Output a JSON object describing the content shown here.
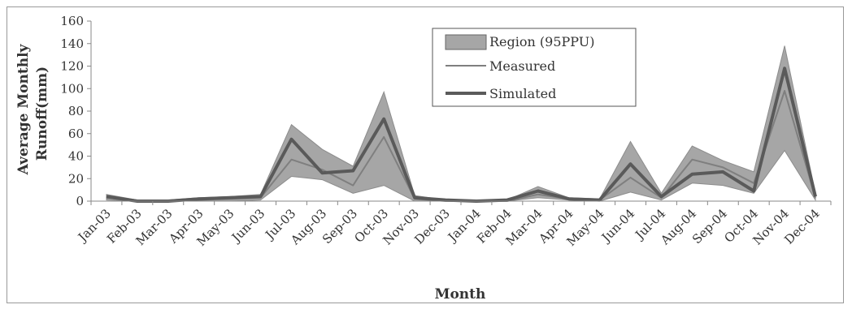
{
  "chart_data": {
    "type": "area",
    "title": "",
    "xlabel": "Month",
    "ylabel_line1": "Average  Monthly",
    "ylabel_line2": "Runoff(mm)",
    "ylim": [
      0,
      160
    ],
    "yticks": [
      0,
      20,
      40,
      60,
      80,
      100,
      120,
      140,
      160
    ],
    "categories": [
      "Jan-03",
      "Feb-03",
      "Mar-03",
      "Apr-03",
      "May-03",
      "Jun-03",
      "Jul-03",
      "Aug-03",
      "Sep-03",
      "Oct-03",
      "Nov-03",
      "Dec-03",
      "Jan-04",
      "Feb-04",
      "Mar-04",
      "Apr-04",
      "May-04",
      "Jun-04",
      "Jul-04",
      "Aug-04",
      "Sep-04",
      "Oct-04",
      "Nov-04",
      "Dec-04"
    ],
    "series": [
      {
        "name": "Region (95PPU)",
        "kind": "band",
        "color": "#a6a6a6",
        "lower": [
          1,
          0,
          0,
          0,
          0,
          1,
          22,
          19,
          7,
          14,
          0,
          0,
          0,
          0,
          3,
          1,
          0,
          8,
          1,
          16,
          14,
          7,
          45,
          1
        ],
        "upper": [
          6,
          1,
          1,
          3,
          4,
          6,
          68,
          46,
          31,
          97,
          5,
          1,
          1,
          1,
          13,
          3,
          2,
          53,
          7,
          49,
          36,
          26,
          138,
          7
        ]
      },
      {
        "name": "Measured",
        "kind": "line",
        "color": "#7f7f7f",
        "values": [
          3,
          0,
          0,
          1,
          2,
          3,
          37,
          28,
          14,
          57,
          2,
          0,
          0,
          0,
          6,
          2,
          1,
          21,
          3,
          37,
          30,
          16,
          98,
          3
        ]
      },
      {
        "name": "Simulated",
        "kind": "line",
        "color": "#5a5a5a",
        "values": [
          4,
          0,
          0,
          2,
          3,
          4,
          55,
          25,
          27,
          73,
          3,
          1,
          0,
          1,
          9,
          2,
          1,
          33,
          4,
          24,
          26,
          9,
          118,
          4
        ]
      }
    ],
    "legend_position": "top-center",
    "grid": false
  }
}
